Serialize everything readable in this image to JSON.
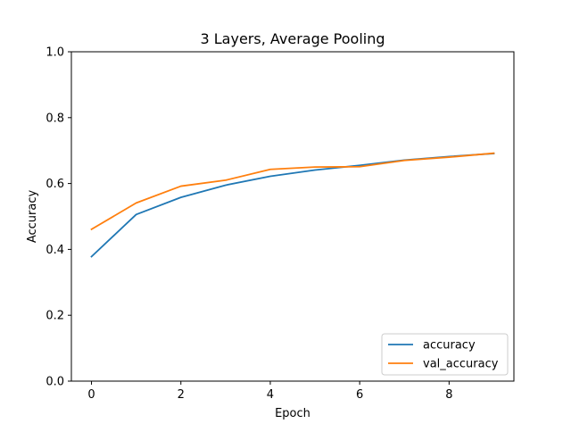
{
  "chart_data": {
    "type": "line",
    "title": "3 Layers, Average Pooling",
    "xlabel": "Epoch",
    "ylabel": "Accuracy",
    "x": [
      0,
      1,
      2,
      3,
      4,
      5,
      6,
      7,
      8,
      9
    ],
    "xlim": [
      -0.45,
      9.45
    ],
    "ylim": [
      0.0,
      1.0
    ],
    "xticks": [
      0,
      2,
      4,
      6,
      8
    ],
    "xtick_labels": [
      "0",
      "2",
      "4",
      "6",
      "8"
    ],
    "yticks": [
      0.0,
      0.2,
      0.4,
      0.6,
      0.8,
      1.0
    ],
    "ytick_labels": [
      "0.0",
      "0.2",
      "0.4",
      "0.6",
      "0.8",
      "1.0"
    ],
    "grid": false,
    "legend_position": "lower-right",
    "series": [
      {
        "name": "accuracy",
        "color": "#1f77b4",
        "values": [
          0.378,
          0.506,
          0.558,
          0.595,
          0.622,
          0.641,
          0.655,
          0.671,
          0.682,
          0.691
        ]
      },
      {
        "name": "val_accuracy",
        "color": "#ff7f0e",
        "values": [
          0.461,
          0.541,
          0.592,
          0.61,
          0.643,
          0.65,
          0.651,
          0.67,
          0.68,
          0.692
        ]
      }
    ]
  }
}
